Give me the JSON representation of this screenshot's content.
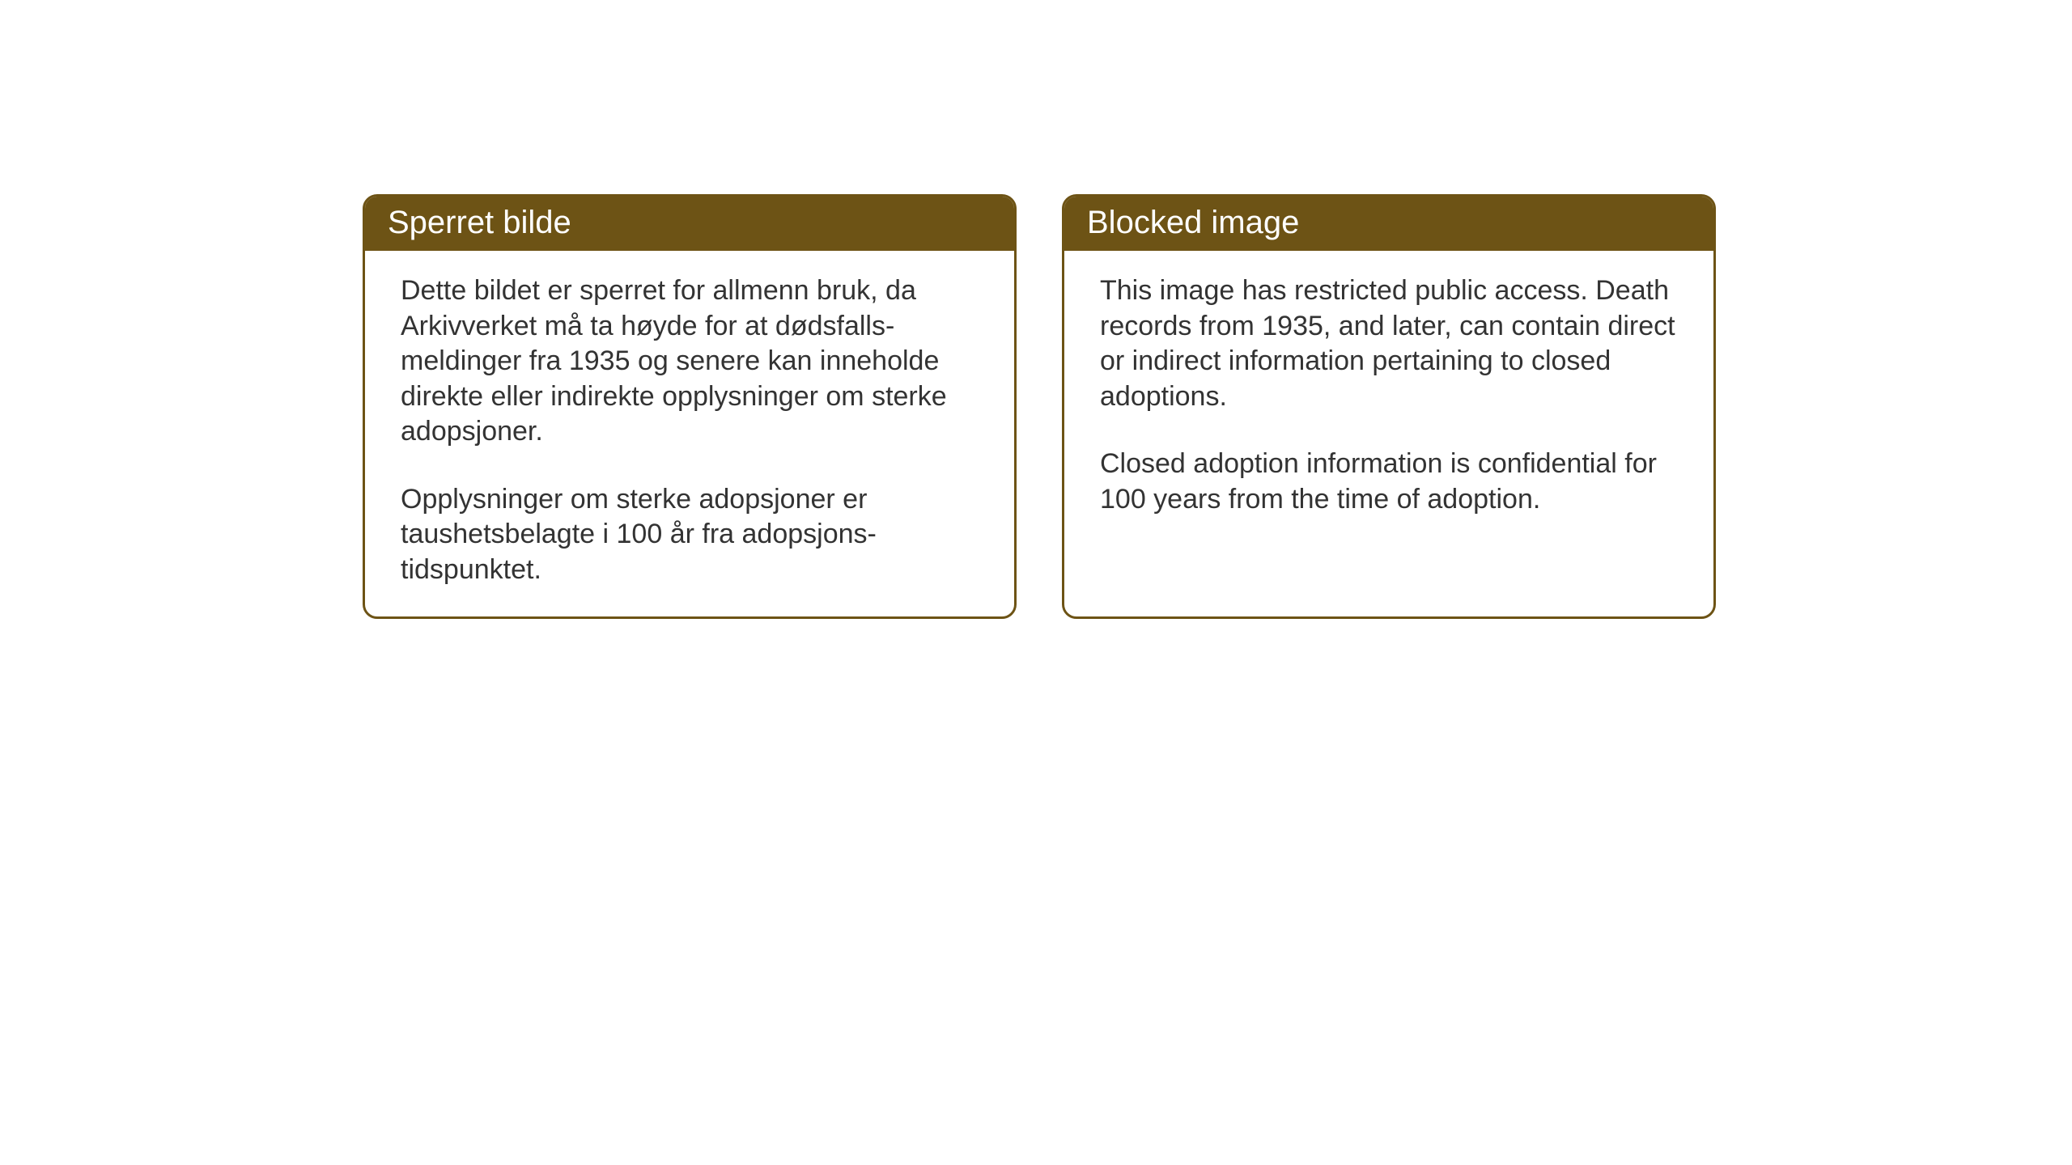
{
  "cards": {
    "norwegian": {
      "title": "Sperret bilde",
      "paragraph1": "Dette bildet er sperret for allmenn bruk, da Arkivverket må ta høyde for at dødsfalls-meldinger fra 1935 og senere kan inneholde direkte eller indirekte opplysninger om sterke adopsjoner.",
      "paragraph2": "Opplysninger om sterke adopsjoner er taushetsbelagte i 100 år fra adopsjons-tidspunktet."
    },
    "english": {
      "title": "Blocked image",
      "paragraph1": "This image has restricted public access. Death records from 1935, and later, can contain direct or indirect information pertaining to closed adoptions.",
      "paragraph2": "Closed adoption information is confidential for 100 years from the time of adoption."
    }
  },
  "style": {
    "header_bg_color": "#6d5315",
    "header_text_color": "#ffffff",
    "border_color": "#6d5315",
    "body_text_color": "#333333",
    "background_color": "#ffffff",
    "header_fontsize": 40,
    "body_fontsize": 34,
    "border_radius": 18,
    "border_width": 3
  }
}
